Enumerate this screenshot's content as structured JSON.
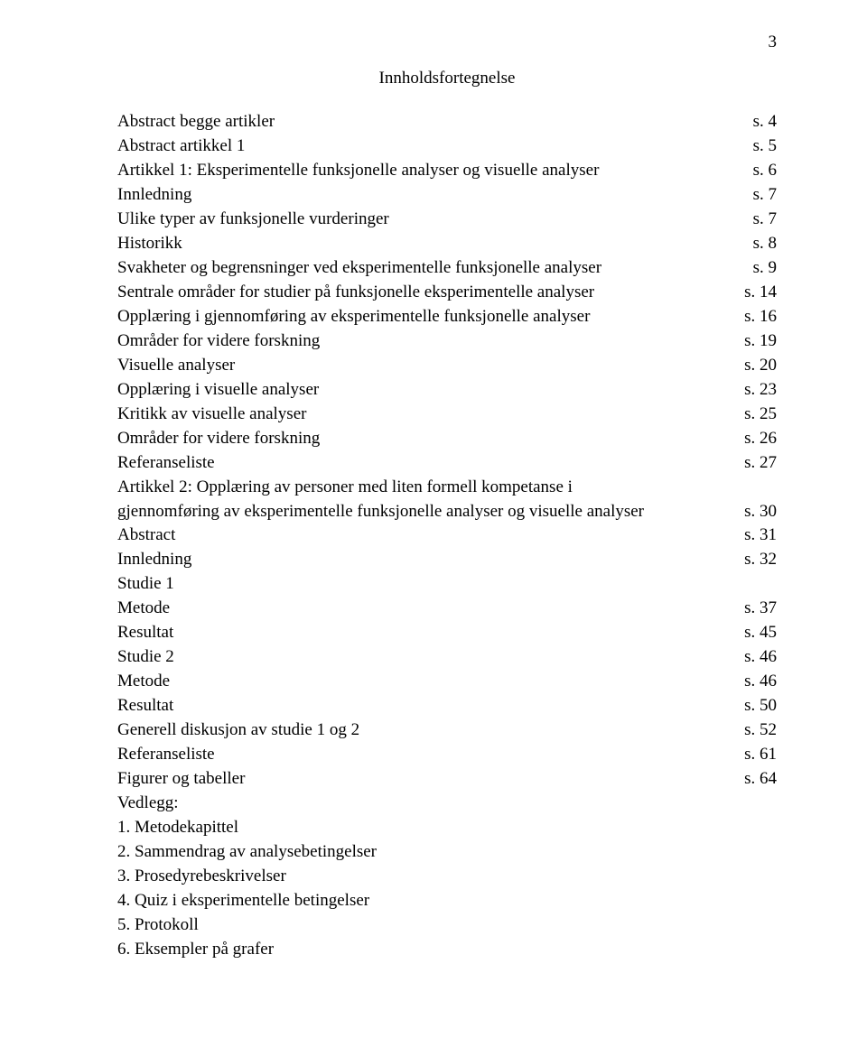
{
  "page_number": "3",
  "toc_title": "Innholdsfortegnelse",
  "entries": [
    {
      "label": "Abstract begge artikler",
      "page": "s. 4"
    },
    {
      "label": "Abstract artikkel 1",
      "page": "s. 5"
    },
    {
      "label": "Artikkel 1: Eksperimentelle funksjonelle analyser og visuelle analyser",
      "page": "s. 6"
    },
    {
      "label": "Innledning",
      "page": "s. 7"
    },
    {
      "label": "Ulike typer av funksjonelle vurderinger",
      "page": "s. 7"
    },
    {
      "label": "Historikk",
      "page": "s. 8"
    },
    {
      "label": "Svakheter og begrensninger ved eksperimentelle funksjonelle analyser",
      "page": "s. 9"
    },
    {
      "label": "Sentrale områder for studier på funksjonelle eksperimentelle analyser",
      "page": "s. 14"
    },
    {
      "label": "Opplæring i gjennomføring av eksperimentelle funksjonelle analyser",
      "page": "s. 16"
    },
    {
      "label": "Områder for videre forskning",
      "page": "s. 19"
    },
    {
      "label": "Visuelle analyser",
      "page": "s. 20"
    },
    {
      "label": "Opplæring i visuelle analyser",
      "page": "s. 23"
    },
    {
      "label": "Kritikk av visuelle analyser",
      "page": "s. 25"
    },
    {
      "label": "Områder for videre forskning",
      "page": "s. 26"
    },
    {
      "label": "Referanseliste",
      "page": "s. 27"
    }
  ],
  "multiline_entry": {
    "line1": "Artikkel 2: Opplæring av personer med liten formell kompetanse i",
    "line2": "gjennomføring av eksperimentelle funksjonelle analyser og visuelle analyser",
    "page": "s. 30"
  },
  "entries2": [
    {
      "label": "Abstract",
      "page": "s. 31"
    },
    {
      "label": "Innledning",
      "page": "s. 32"
    },
    {
      "label": "Studie 1",
      "page": ""
    },
    {
      "label": "Metode",
      "page": "s. 37"
    },
    {
      "label": "Resultat",
      "page": "s. 45"
    },
    {
      "label": "Studie 2",
      "page": "s. 46"
    },
    {
      "label": "Metode",
      "page": "s. 46"
    },
    {
      "label": "Resultat",
      "page": "s. 50"
    },
    {
      "label": "Generell diskusjon av studie 1 og 2",
      "page": "s. 52"
    },
    {
      "label": "Referanseliste",
      "page": "s. 61"
    },
    {
      "label": "Figurer og tabeller",
      "page": "s. 64"
    }
  ],
  "vedlegg_header": "Vedlegg:",
  "vedlegg": [
    "1. Metodekapittel",
    "2. Sammendrag av analysebetingelser",
    "3. Prosedyrebeskrivelser",
    "4. Quiz i eksperimentelle betingelser",
    "5. Protokoll",
    "6. Eksempler på grafer"
  ]
}
